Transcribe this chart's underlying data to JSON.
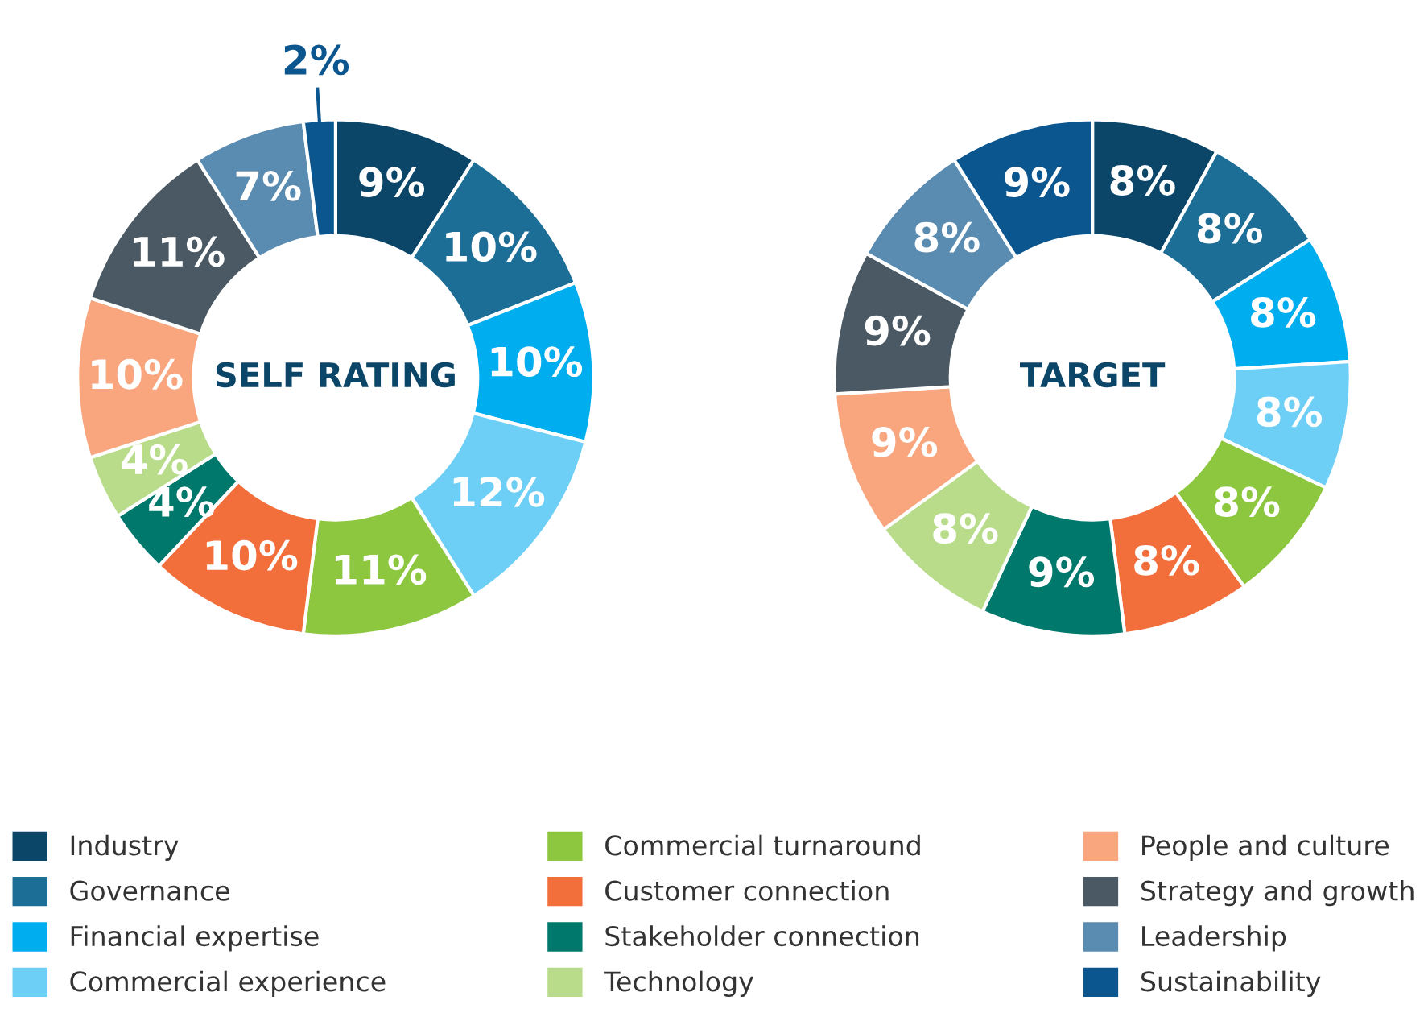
{
  "chart_data": [
    {
      "type": "donut",
      "title": "SELF RATING",
      "categories": [
        "Industry",
        "Governance",
        "Financial expertise",
        "Commercial experience",
        "Commercial turnaround",
        "Customer connection",
        "Stakeholder connection",
        "Technology",
        "People and culture",
        "Strategy and growth",
        "Leadership",
        "Sustainability"
      ],
      "values": [
        9,
        10,
        10,
        12,
        11,
        10,
        4,
        4,
        10,
        11,
        7,
        2
      ],
      "colors": [
        "#0b4669",
        "#1d6e96",
        "#00adee",
        "#6dcff6",
        "#8dc63f",
        "#f26f3c",
        "#00786b",
        "#b8dc8a",
        "#f9a57e",
        "#4a5963",
        "#5a8cb2",
        "#0c5690"
      ],
      "value_labels": [
        "9%",
        "10%",
        "10%",
        "12%",
        "11%",
        "10%",
        "4%",
        "4%",
        "10%",
        "11%",
        "7%",
        "2%"
      ],
      "legend": "bottom"
    },
    {
      "type": "donut",
      "title": "TARGET",
      "categories": [
        null,
        null,
        null,
        null,
        null,
        null,
        null,
        null,
        null,
        null,
        null,
        null
      ],
      "values": [
        8,
        8,
        8,
        8,
        8,
        8,
        9,
        8,
        9,
        9,
        8,
        9
      ],
      "colors": [
        "#0b4669",
        "#1d6e96",
        "#00adee",
        "#6dcff6",
        "#8dc63f",
        "#f26f3c",
        "#00786b",
        "#b8dc8a",
        "#f9a57e",
        "#4a5963",
        "#5a8cb2",
        "#0c5690"
      ],
      "value_labels": [
        "8%",
        "8%",
        "8%",
        "8%",
        "8%",
        "8%",
        "9%",
        "8%",
        "9%",
        "9%",
        "8%",
        "9%"
      ]
    }
  ]
}
